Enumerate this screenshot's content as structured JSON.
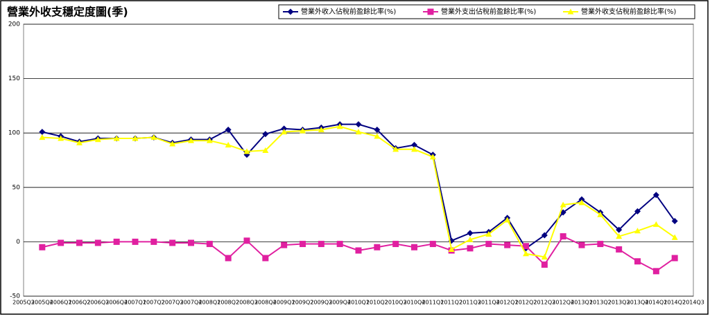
{
  "chart_data": {
    "type": "line",
    "title": "營業外收支穩定度圖(季)",
    "categories": [
      "2005Q3",
      "2005Q4",
      "2006Q1",
      "2006Q2",
      "2006Q3",
      "2006Q4",
      "2007Q1",
      "2007Q2",
      "2007Q3",
      "2007Q4",
      "2008Q1",
      "2008Q2",
      "2008Q3",
      "2008Q4",
      "2009Q1",
      "2009Q2",
      "2009Q3",
      "2009Q4",
      "2010Q1",
      "2010Q2",
      "2010Q3",
      "2010Q4",
      "2011Q1",
      "2011Q2",
      "2011Q3",
      "2011Q4",
      "2012Q1",
      "2012Q2",
      "2012Q3",
      "2012Q4",
      "2013Q1",
      "2013Q2",
      "2013Q3",
      "2013Q4",
      "2014Q1",
      "2014Q2",
      "2014Q3"
    ],
    "series": [
      {
        "name": "營業外收入佔稅前盈餘比率(%)",
        "color": "#000080",
        "marker": "diamond",
        "values": [
          null,
          101,
          97,
          92,
          95,
          95,
          95,
          96,
          91,
          94,
          94,
          103,
          80,
          99,
          104,
          103,
          105,
          108,
          108,
          103,
          86,
          89,
          80,
          1,
          8,
          9,
          22,
          -6,
          6,
          27,
          39,
          27,
          11,
          28,
          43,
          19,
          null
        ]
      },
      {
        "name": "營業外支出佔稅前盈餘比率(%)",
        "color": "#e020a0",
        "marker": "square",
        "values": [
          null,
          -5,
          -1,
          -1,
          -1,
          0,
          0,
          0,
          -1,
          -1,
          -2,
          -15,
          1,
          -15,
          -3,
          -2,
          -2,
          -2,
          -8,
          -5,
          -2,
          -5,
          -2,
          -8,
          -6,
          -2,
          -3,
          -4,
          -21,
          5,
          -3,
          -2,
          -7,
          -18,
          -27,
          -15,
          null
        ]
      },
      {
        "name": "營業外收支佔稅前盈餘比率(%)",
        "color": "#ffff00",
        "marker": "triangle",
        "values": [
          null,
          96,
          95,
          91,
          94,
          95,
          95,
          96,
          90,
          93,
          93,
          89,
          83,
          84,
          101,
          102,
          103,
          106,
          101,
          97,
          85,
          85,
          78,
          -7,
          2,
          7,
          20,
          -11,
          -14,
          34,
          36,
          25,
          5,
          10,
          16,
          4,
          null
        ]
      }
    ],
    "ylim": [
      -50,
      200
    ],
    "yticks": [
      -50,
      0,
      50,
      100,
      150,
      200
    ],
    "grid": true,
    "legend": "top-right"
  }
}
